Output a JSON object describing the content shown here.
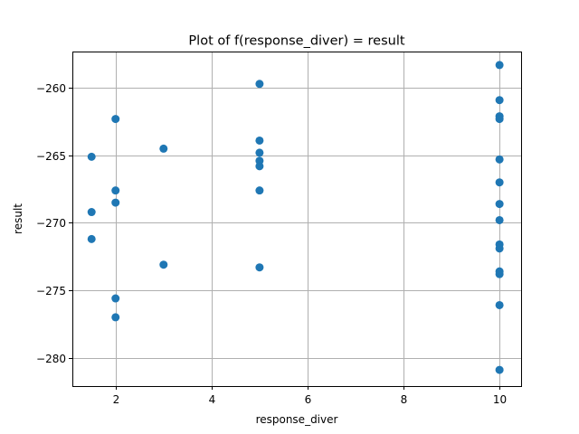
{
  "chart_data": {
    "type": "scatter",
    "title": "Plot of f(response_diver) = result",
    "xlabel": "response_diver",
    "ylabel": "result",
    "xlim": [
      1.1,
      10.45
    ],
    "ylim": [
      -282.1,
      -257.3
    ],
    "xticks": [
      2,
      4,
      6,
      8,
      10
    ],
    "xtick_labels": [
      "2",
      "4",
      "6",
      "8",
      "10"
    ],
    "yticks": [
      -280,
      -275,
      -270,
      -265,
      -260
    ],
    "ytick_labels": [
      "−280",
      "−275",
      "−270",
      "−265",
      "−260"
    ],
    "grid": true,
    "marker_color": "#1f77b4",
    "points": [
      {
        "x": 1.5,
        "y": -265.1
      },
      {
        "x": 1.5,
        "y": -269.2
      },
      {
        "x": 1.5,
        "y": -271.2
      },
      {
        "x": 2,
        "y": -262.3
      },
      {
        "x": 2,
        "y": -267.6
      },
      {
        "x": 2,
        "y": -268.5
      },
      {
        "x": 2,
        "y": -275.6
      },
      {
        "x": 2,
        "y": -277.0
      },
      {
        "x": 3,
        "y": -264.5
      },
      {
        "x": 3,
        "y": -273.1
      },
      {
        "x": 5,
        "y": -259.7
      },
      {
        "x": 5,
        "y": -263.9
      },
      {
        "x": 5,
        "y": -264.8
      },
      {
        "x": 5,
        "y": -265.4
      },
      {
        "x": 5,
        "y": -265.8
      },
      {
        "x": 5,
        "y": -267.6
      },
      {
        "x": 5,
        "y": -273.3
      },
      {
        "x": 10,
        "y": -258.3
      },
      {
        "x": 10,
        "y": -260.9
      },
      {
        "x": 10,
        "y": -262.1
      },
      {
        "x": 10,
        "y": -262.3
      },
      {
        "x": 10,
        "y": -265.3
      },
      {
        "x": 10,
        "y": -267.0
      },
      {
        "x": 10,
        "y": -268.6
      },
      {
        "x": 10,
        "y": -269.8
      },
      {
        "x": 10,
        "y": -271.6
      },
      {
        "x": 10,
        "y": -271.9
      },
      {
        "x": 10,
        "y": -273.6
      },
      {
        "x": 10,
        "y": -273.8
      },
      {
        "x": 10,
        "y": -276.1
      },
      {
        "x": 10,
        "y": -280.9
      }
    ]
  }
}
